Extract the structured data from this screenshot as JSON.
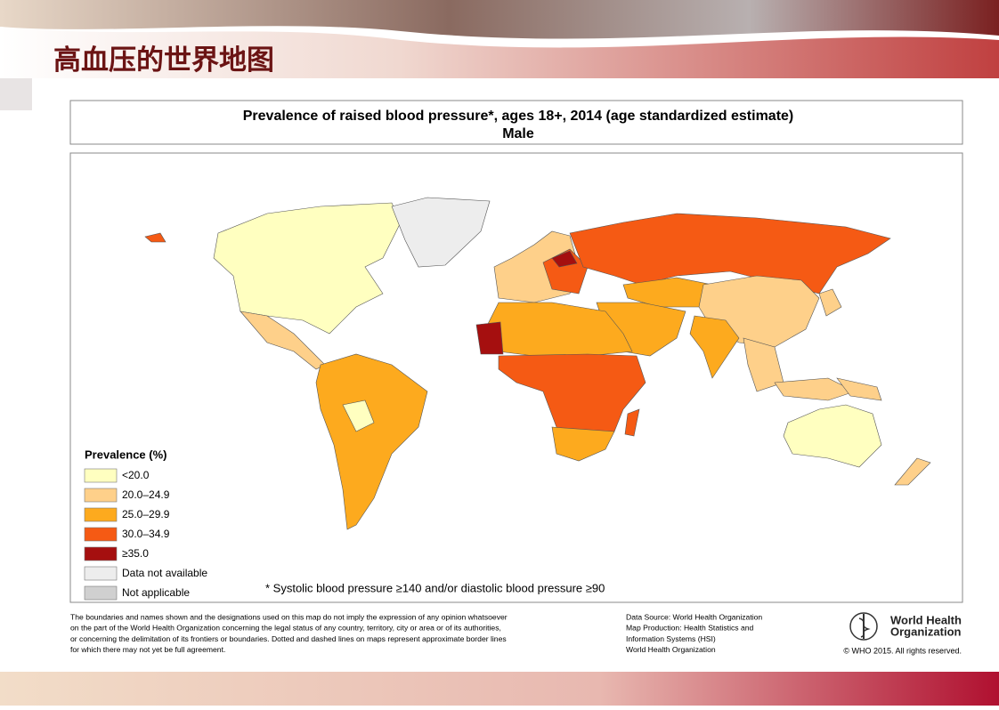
{
  "slide_title": "高血压的世界地图",
  "map": {
    "title": "Prevalence of raised blood pressure*, ages 18+, 2014 (age standardized estimate)",
    "subtitle": "Male",
    "legend": {
      "title": "Prevalence (%)",
      "items": [
        {
          "label": "<20.0",
          "color": "#ffffc0"
        },
        {
          "label": "20.0–24.9",
          "color": "#fed08a"
        },
        {
          "label": "25.0–29.9",
          "color": "#fdaa1e"
        },
        {
          "label": "30.0–34.9",
          "color": "#f55a14"
        },
        {
          "label": "≥35.0",
          "color": "#a50f0f"
        },
        {
          "label": "Data not available",
          "color": "#ededed"
        },
        {
          "label": "Not applicable",
          "color": "#d0d0d0"
        }
      ]
    },
    "footnote": "* Systolic blood pressure ≥140 and/or diastolic blood pressure ≥90"
  },
  "disclaimer": [
    "The boundaries and names shown and the designations used on this map do not imply the expression of any opinion whatsoever",
    "on the part of the World Health Organization concerning the legal status of any country, territory, city or area or of its authorities,",
    "or concerning the delimitation of its frontiers or boundaries. Dotted and dashed lines on maps represent approximate border lines",
    "for which there may not yet be full agreement."
  ],
  "source": [
    "Data Source: World Health Organization",
    "Map Production: Health Statistics and",
    "Information Systems (HSI)",
    "World Health Organization"
  ],
  "who": {
    "name": [
      "World Health",
      "Organization"
    ],
    "copyright": "© WHO 2015. All rights reserved."
  }
}
